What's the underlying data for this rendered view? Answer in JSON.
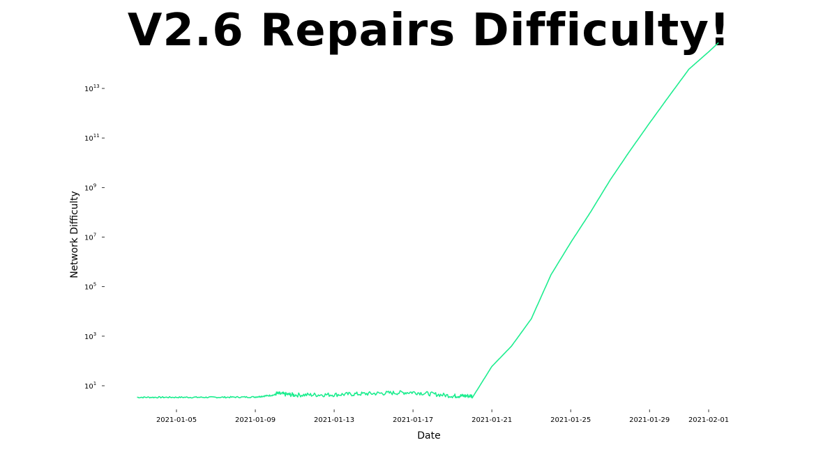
{
  "title": "V2.6 Repairs Difficulty!",
  "colors": {
    "line": "#1ded8f",
    "background": "#ffffff",
    "text": "#000000"
  },
  "chart_data": {
    "type": "line",
    "title": "V2.6 Repairs Difficulty!",
    "xlabel": "Date",
    "ylabel": "Network Difficulty",
    "yscale": "log",
    "grid": false,
    "legend": "none",
    "xlim": [
      "2021-01-03",
      "2021-02-02"
    ],
    "ylim_log10": [
      -0.7,
      13.75
    ],
    "x_ticks": [
      "2021-01-05",
      "2021-01-09",
      "2021-01-13",
      "2021-01-17",
      "2021-01-21",
      "2021-01-25",
      "2021-01-29",
      "2021-02-01"
    ],
    "y_ticks": [
      {
        "base": "10",
        "exp": "1",
        "value": 10
      },
      {
        "base": "10",
        "exp": "3",
        "value": 1000
      },
      {
        "base": "10",
        "exp": "5",
        "value": 100000
      },
      {
        "base": "10",
        "exp": "7",
        "value": 10000000
      },
      {
        "base": "10",
        "exp": "9",
        "value": 1000000000
      },
      {
        "base": "10",
        "exp": "11",
        "value": 100000000000
      },
      {
        "base": "10",
        "exp": "13",
        "value": 10000000000000
      }
    ],
    "series": [
      {
        "x": [
          "2021-01-03",
          "2021-01-05",
          "2021-01-07",
          "2021-01-09",
          "2021-01-10",
          "2021-01-11",
          "2021-01-13",
          "2021-01-15",
          "2021-01-17",
          "2021-01-19",
          "2021-01-20",
          "2021-01-21",
          "2021-01-22",
          "2021-01-23",
          "2021-01-24",
          "2021-01-25",
          "2021-01-26",
          "2021-01-27",
          "2021-01-28",
          "2021-01-29",
          "2021-01-30",
          "2021-01-31",
          "2021-02-01",
          "2021-02-01T12:00"
        ],
        "y": [
          3.2,
          3.2,
          3.2,
          3.3,
          4.0,
          3.5,
          3.6,
          4.0,
          4.5,
          3.2,
          3.2,
          60,
          400,
          5000,
          300000,
          6000000,
          100000000,
          2000000000,
          30000000000,
          400000000000,
          5000000000000,
          60000000000000,
          300000000000000,
          700000000000000
        ]
      }
    ]
  }
}
